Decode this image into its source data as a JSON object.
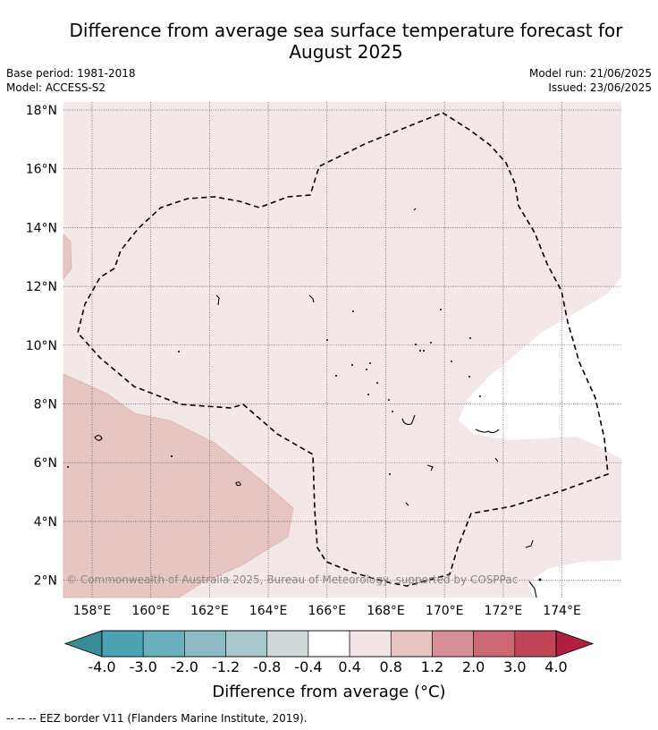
{
  "title_line1": "Difference from average sea surface temperature forecast for",
  "title_line2": "August 2025",
  "base_period": "Base period: 1981-2018",
  "model": "Model: ACCESS-S2",
  "model_run": "Model run: 21/06/2025",
  "issued": "Issued: 23/06/2025",
  "copyright": "© Commonwealth of Australia 2025, Bureau of Meteorology, supported by COSPPac",
  "lat_labels": [
    "18°N",
    "16°N",
    "14°N",
    "12°N",
    "10°N",
    "8°N",
    "6°N",
    "4°N",
    "2°N"
  ],
  "lon_labels": [
    "158°E",
    "160°E",
    "162°E",
    "164°E",
    "166°E",
    "168°E",
    "170°E",
    "172°E",
    "174°E"
  ],
  "colorbar": {
    "title": "Difference from average (°C)",
    "ticks": [
      "-4.0",
      "-3.0",
      "-2.0",
      "-1.2",
      "-0.8",
      "-0.4",
      "0.4",
      "0.8",
      "1.2",
      "2.0",
      "3.0",
      "4.0"
    ],
    "colors": [
      "#4aa2b4",
      "#6aafbe",
      "#8cbac5",
      "#a9c8cd",
      "#cfd7d9",
      "#ffffff",
      "#f3e5e5",
      "#e8c4c1",
      "#d98f97",
      "#cc6874",
      "#bf4557"
    ],
    "under_color": "#3a8a97",
    "over_color": "#b01f3d"
  },
  "fill_colors": {
    "band_0_4_0_8": "#f3e7e7",
    "band_0_8_1_2": "#e7c5c2",
    "band_neutral": "#ffffff"
  },
  "footer": "--  --  -- EEZ border V11 (Flanders Marine Institute, 2019)."
}
